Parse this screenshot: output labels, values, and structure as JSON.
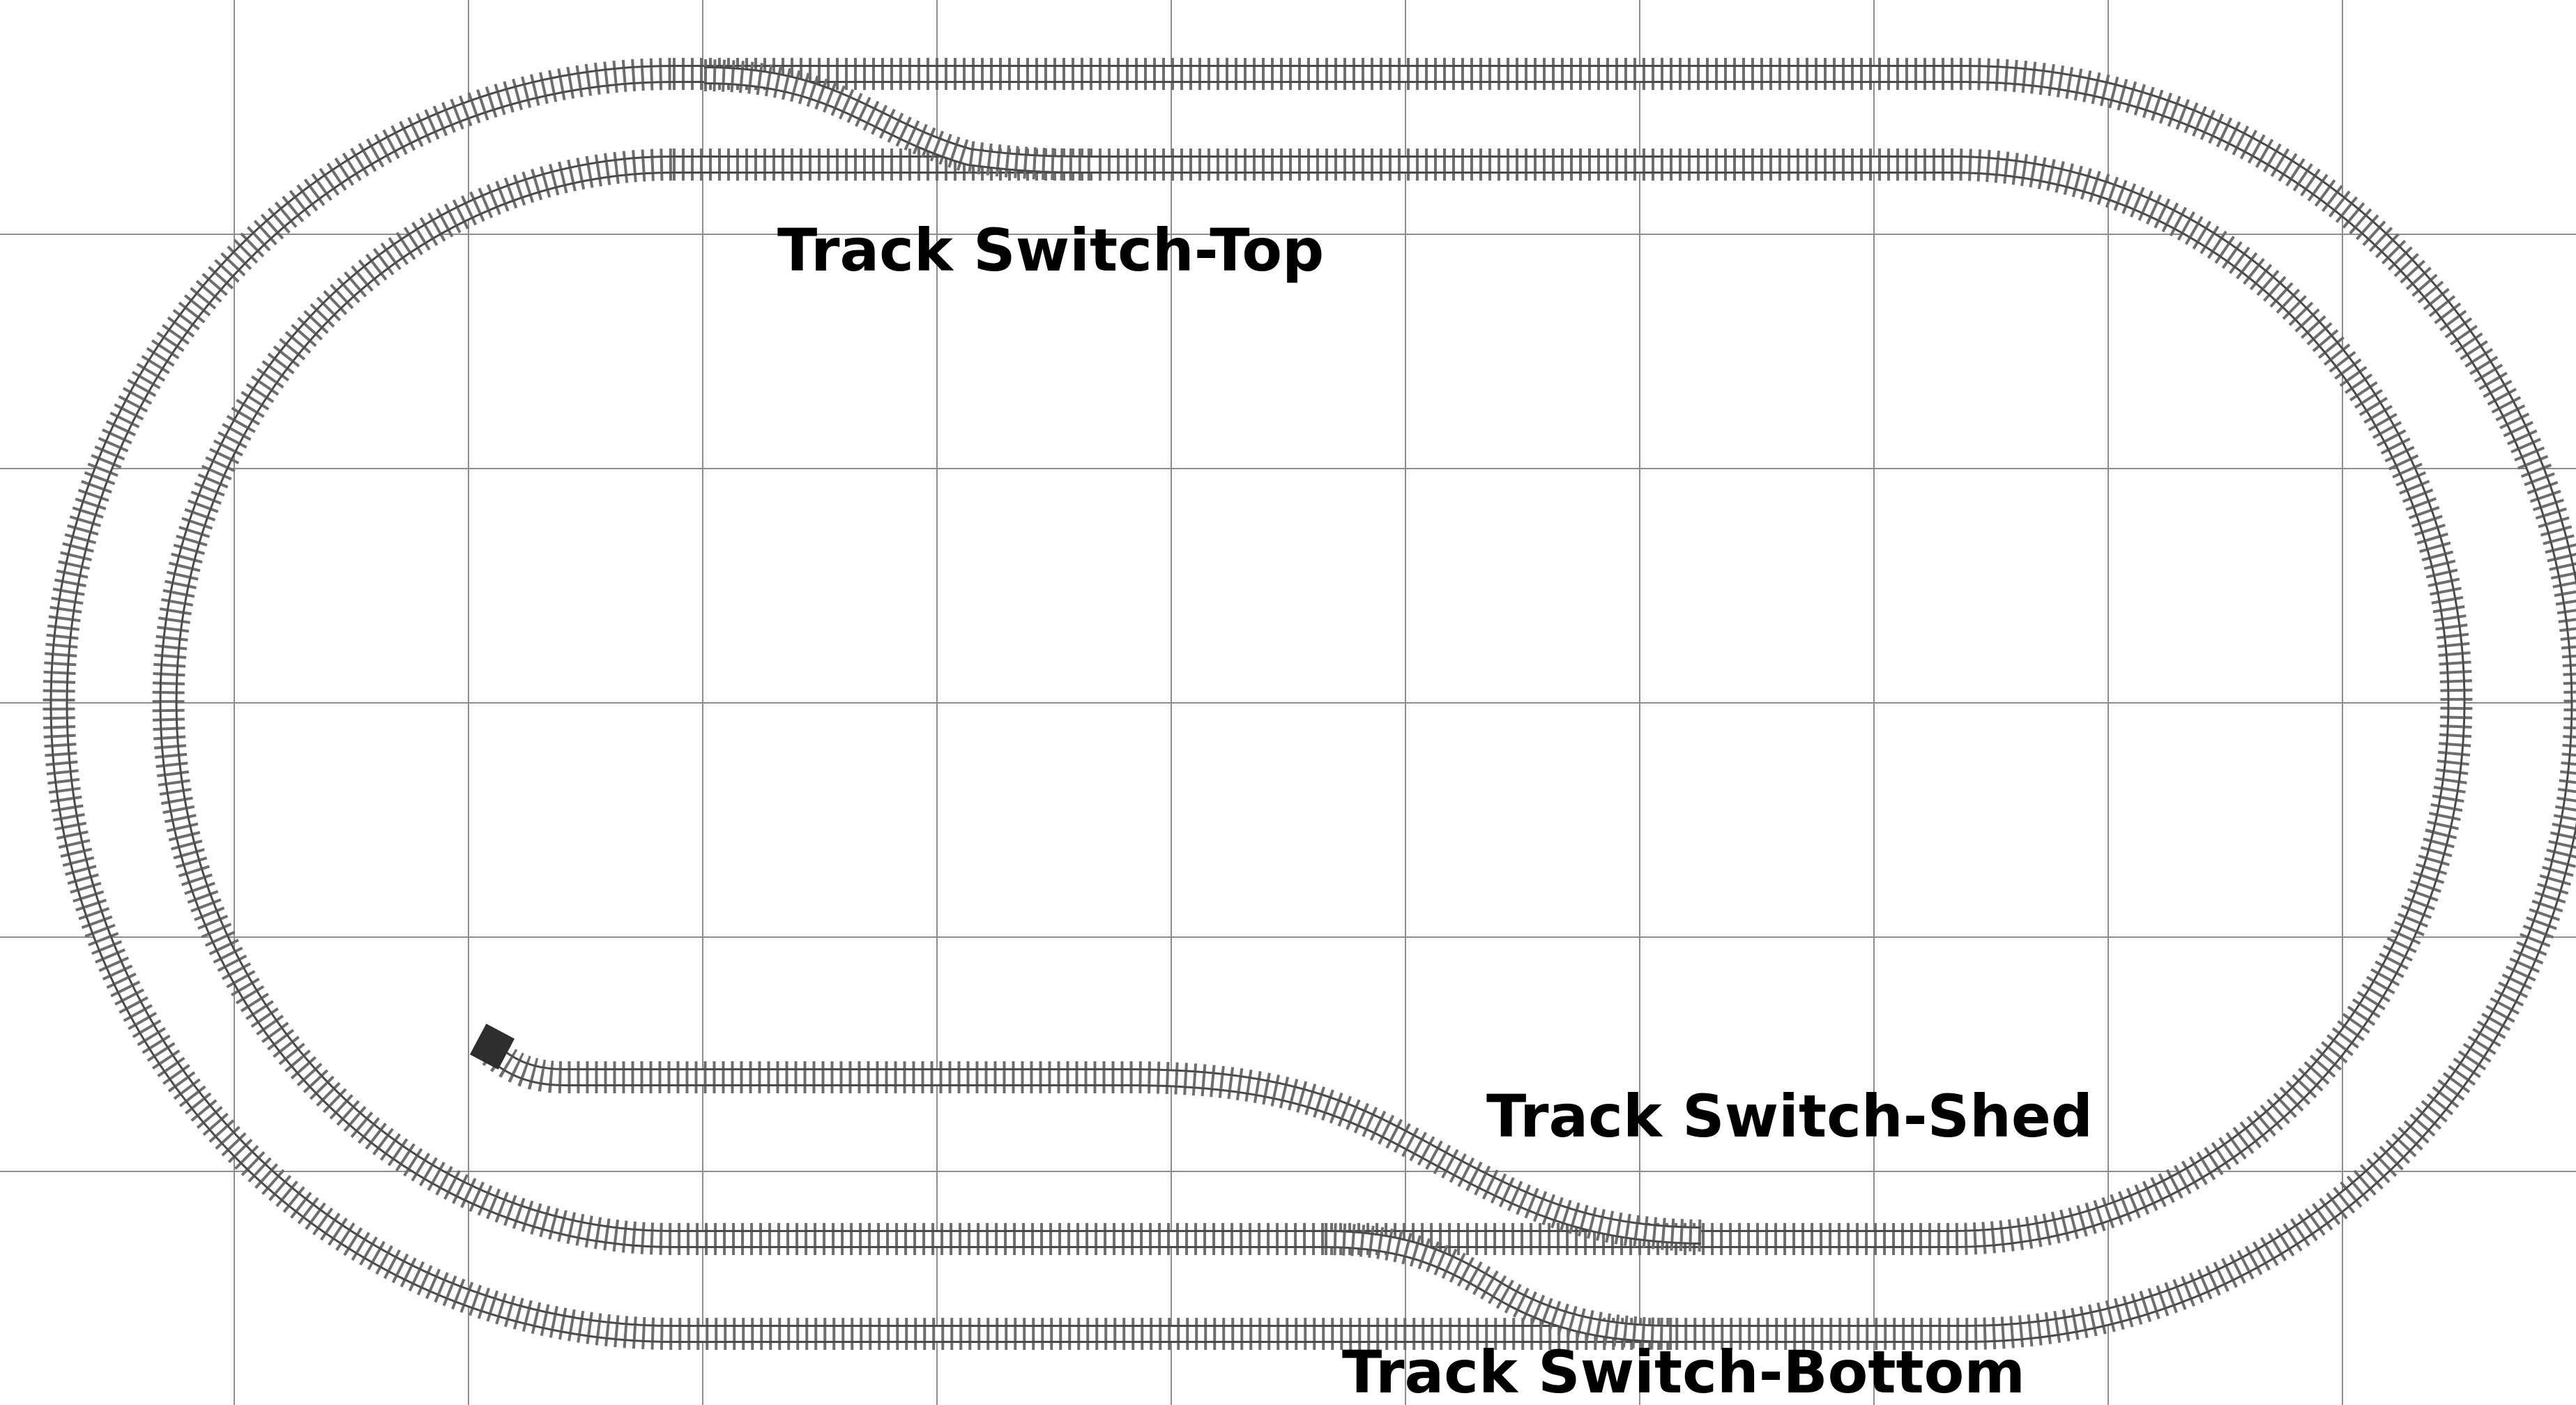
{
  "colors": {
    "background": "#ffffff",
    "grid": "#8c8c8c",
    "rail": "#4a4a4a",
    "tie": "#6e6e6e",
    "buffer": "#2e2e2e",
    "label": "#000000"
  },
  "labels": {
    "switch_top": "Track Switch-Top",
    "switch_shed": "Track Switch-Shed",
    "switch_bottom": "Track Switch-Bottom"
  }
}
